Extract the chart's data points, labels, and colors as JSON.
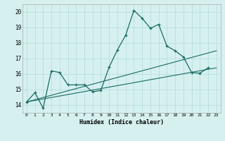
{
  "xlabel": "Humidex (Indice chaleur)",
  "bg_color": "#d6f0f0",
  "grid_color": "#b8dede",
  "line_color": "#1a6b60",
  "xlim": [
    -0.5,
    23.5
  ],
  "ylim": [
    13.5,
    20.5
  ],
  "xticks": [
    0,
    1,
    2,
    3,
    4,
    5,
    6,
    7,
    8,
    9,
    10,
    11,
    12,
    13,
    14,
    15,
    16,
    17,
    18,
    19,
    20,
    21,
    22,
    23
  ],
  "yticks": [
    14,
    15,
    16,
    17,
    18,
    19,
    20
  ],
  "main_x": [
    0,
    1,
    2,
    3,
    4,
    5,
    6,
    7,
    8,
    9,
    10,
    11,
    12,
    13,
    14,
    15,
    16,
    17,
    18,
    19,
    20,
    21,
    22
  ],
  "main_y": [
    14.2,
    14.8,
    13.8,
    16.2,
    16.1,
    15.3,
    15.3,
    15.3,
    14.85,
    14.95,
    16.45,
    17.55,
    18.5,
    20.1,
    19.6,
    18.95,
    19.2,
    17.8,
    17.5,
    17.1,
    16.1,
    16.05,
    16.4
  ],
  "trend1_x": [
    0,
    23
  ],
  "trend1_y": [
    14.2,
    17.5
  ],
  "trend2_x": [
    0,
    23
  ],
  "trend2_y": [
    14.2,
    16.4
  ]
}
